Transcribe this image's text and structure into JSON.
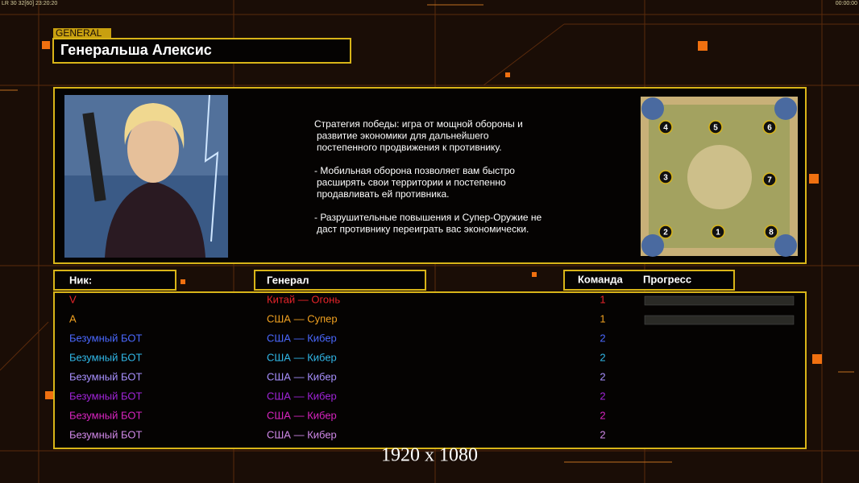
{
  "hud": {
    "top_left": "LR 30 32[60] 23:20:20",
    "top_right": "00:00:00"
  },
  "header": {
    "tag": "GENERAL",
    "title": "Генеральша Алексис"
  },
  "description": [
    [
      "Стратегия победы: игра от мощной обороны и",
      "развитие экономики для дальнейшего",
      "постепенного продвижения к противнику."
    ],
    [
      "- Мобильная оборона позволяет вам быстро",
      "расширять свои территории и постепенно",
      "продавливать ей противника."
    ],
    [
      "- Разрушительные повышения и Супер-Оружие не",
      "даст противнику переиграть вас экономически."
    ]
  ],
  "map": {
    "slots": [
      "4",
      "5",
      "6",
      "3",
      "7",
      "2",
      "1",
      "8"
    ]
  },
  "table": {
    "columns": [
      "Ник:",
      "Генерал",
      "Команда",
      "Прогресс"
    ],
    "rows": [
      {
        "name": "V",
        "general": "Китай — Огонь",
        "team": 1,
        "color": "#e8242a"
      },
      {
        "name": "A",
        "general": "США — Супер",
        "team": 1,
        "color": "#f0a020"
      },
      {
        "name": "Безумный БОТ",
        "general": "США — Кибер",
        "team": 2,
        "color": "#4a68ff"
      },
      {
        "name": "Безумный БОТ",
        "general": "США — Кибер",
        "team": 2,
        "color": "#30b8e8"
      },
      {
        "name": "Безумный БОТ",
        "general": "США — Кибер",
        "team": 2,
        "color": "#a890ff"
      },
      {
        "name": "Безумный БОТ",
        "general": "США — Кибер",
        "team": 2,
        "color": "#a024d8"
      },
      {
        "name": "Безумный БОТ",
        "general": "США — Кибер",
        "team": 2,
        "color": "#d824c0"
      },
      {
        "name": "Безумный БОТ",
        "general": "США — Кибер",
        "team": 2,
        "color": "#d088e8"
      }
    ]
  },
  "resolution": "1920 x 1080"
}
